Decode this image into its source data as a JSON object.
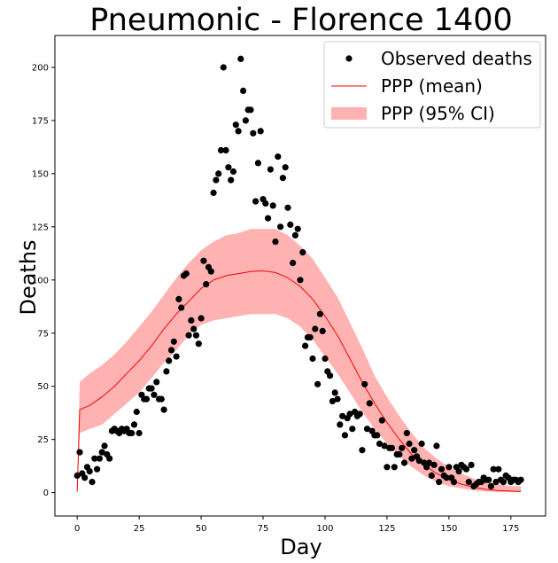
{
  "chart_data": {
    "type": "scatter",
    "title": "Pneumonic - Florence 1400",
    "xlabel": "Day",
    "ylabel": "Deaths",
    "xlim": [
      -9,
      189
    ],
    "ylim": [
      -11,
      215
    ],
    "xticks": [
      0,
      25,
      50,
      75,
      100,
      125,
      150,
      175
    ],
    "yticks": [
      0,
      25,
      50,
      75,
      100,
      125,
      150,
      175,
      200
    ],
    "grid": false,
    "legend": {
      "position": "top-right"
    },
    "series": [
      {
        "name": "Observed deaths",
        "kind": "scatter",
        "color": "#000000",
        "points": [
          [
            0,
            8
          ],
          [
            1,
            19
          ],
          [
            2,
            9
          ],
          [
            3,
            7
          ],
          [
            4,
            12
          ],
          [
            5,
            10
          ],
          [
            6,
            5
          ],
          [
            7,
            16
          ],
          [
            8,
            11
          ],
          [
            9,
            16
          ],
          [
            10,
            19
          ],
          [
            11,
            22
          ],
          [
            12,
            18
          ],
          [
            13,
            16
          ],
          [
            14,
            29
          ],
          [
            15,
            30
          ],
          [
            16,
            29
          ],
          [
            17,
            28
          ],
          [
            18,
            30
          ],
          [
            19,
            29
          ],
          [
            20,
            30
          ],
          [
            21,
            28
          ],
          [
            22,
            28
          ],
          [
            23,
            32
          ],
          [
            24,
            38
          ],
          [
            25,
            28
          ],
          [
            26,
            46
          ],
          [
            27,
            44
          ],
          [
            28,
            44
          ],
          [
            29,
            49
          ],
          [
            30,
            49
          ],
          [
            31,
            46
          ],
          [
            32,
            52
          ],
          [
            33,
            44
          ],
          [
            34,
            44
          ],
          [
            35,
            39
          ],
          [
            36,
            57
          ],
          [
            37,
            62
          ],
          [
            38,
            67
          ],
          [
            39,
            71
          ],
          [
            40,
            64
          ],
          [
            41,
            91
          ],
          [
            42,
            87
          ],
          [
            43,
            102
          ],
          [
            44,
            103
          ],
          [
            45,
            74
          ],
          [
            46,
            81
          ],
          [
            47,
            77
          ],
          [
            48,
            74
          ],
          [
            49,
            70
          ],
          [
            50,
            82
          ],
          [
            51,
            109
          ],
          [
            52,
            98
          ],
          [
            53,
            106
          ],
          [
            54,
            104
          ],
          [
            55,
            141
          ],
          [
            56,
            147
          ],
          [
            57,
            150
          ],
          [
            58,
            161
          ],
          [
            59,
            200
          ],
          [
            60,
            161
          ],
          [
            61,
            153
          ],
          [
            62,
            147
          ],
          [
            63,
            151
          ],
          [
            64,
            173
          ],
          [
            65,
            170
          ],
          [
            66,
            204
          ],
          [
            67,
            189
          ],
          [
            68,
            175
          ],
          [
            69,
            180
          ],
          [
            70,
            180
          ],
          [
            71,
            169
          ],
          [
            72,
            137
          ],
          [
            73,
            155
          ],
          [
            74,
            170
          ],
          [
            75,
            138
          ],
          [
            76,
            136
          ],
          [
            77,
            129
          ],
          [
            78,
            152
          ],
          [
            79,
            135
          ],
          [
            80,
            118
          ],
          [
            81,
            158
          ],
          [
            82,
            125
          ],
          [
            83,
            148
          ],
          [
            84,
            153
          ],
          [
            85,
            134
          ],
          [
            86,
            126
          ],
          [
            87,
            108
          ],
          [
            88,
            121
          ],
          [
            89,
            124
          ],
          [
            90,
            100
          ],
          [
            91,
            113
          ],
          [
            92,
            69
          ],
          [
            93,
            73
          ],
          [
            94,
            73
          ],
          [
            95,
            63
          ],
          [
            96,
            77
          ],
          [
            97,
            51
          ],
          [
            98,
            84
          ],
          [
            99,
            76
          ],
          [
            100,
            63
          ],
          [
            101,
            57
          ],
          [
            102,
            55
          ],
          [
            103,
            43
          ],
          [
            104,
            47
          ],
          [
            105,
            44
          ],
          [
            106,
            32
          ],
          [
            107,
            36
          ],
          [
            108,
            27
          ],
          [
            109,
            35
          ],
          [
            110,
            37
          ],
          [
            111,
            30
          ],
          [
            112,
            38
          ],
          [
            113,
            36
          ],
          [
            114,
            37
          ],
          [
            115,
            20
          ],
          [
            116,
            51
          ],
          [
            117,
            30
          ],
          [
            118,
            42
          ],
          [
            119,
            29
          ],
          [
            120,
            27
          ],
          [
            121,
            27
          ],
          [
            122,
            23
          ],
          [
            123,
            34
          ],
          [
            124,
            22
          ],
          [
            125,
            12
          ],
          [
            126,
            21
          ],
          [
            127,
            21
          ],
          [
            128,
            12
          ],
          [
            129,
            18
          ],
          [
            130,
            18
          ],
          [
            131,
            21
          ],
          [
            132,
            14
          ],
          [
            133,
            28
          ],
          [
            134,
            23
          ],
          [
            135,
            16
          ],
          [
            136,
            20
          ],
          [
            137,
            17
          ],
          [
            138,
            15
          ],
          [
            139,
            23
          ],
          [
            140,
            14
          ],
          [
            141,
            12
          ],
          [
            142,
            14
          ],
          [
            143,
            8
          ],
          [
            144,
            13
          ],
          [
            145,
            22
          ],
          [
            146,
            5
          ],
          [
            147,
            11
          ],
          [
            148,
            8
          ],
          [
            149,
            7
          ],
          [
            150,
            12
          ],
          [
            151,
            7
          ],
          [
            152,
            5
          ],
          [
            153,
            12
          ],
          [
            154,
            10
          ],
          [
            155,
            13
          ],
          [
            156,
            12
          ],
          [
            157,
            11
          ],
          [
            158,
            5
          ],
          [
            159,
            13
          ],
          [
            160,
            3
          ],
          [
            161,
            4
          ],
          [
            162,
            5
          ],
          [
            163,
            5
          ],
          [
            164,
            7
          ],
          [
            165,
            6
          ],
          [
            166,
            6
          ],
          [
            167,
            3
          ],
          [
            168,
            11
          ],
          [
            169,
            5
          ],
          [
            170,
            11
          ],
          [
            171,
            6
          ],
          [
            172,
            5
          ],
          [
            173,
            8
          ],
          [
            174,
            7
          ],
          [
            175,
            5
          ],
          [
            176,
            6
          ],
          [
            177,
            6
          ],
          [
            178,
            5
          ],
          [
            179,
            6
          ]
        ]
      },
      {
        "name": "PPP (mean)",
        "kind": "line",
        "color": "#ff0000",
        "points": [
          [
            0,
            0.5
          ],
          [
            1,
            39
          ],
          [
            5,
            41
          ],
          [
            10,
            45
          ],
          [
            15,
            50
          ],
          [
            20,
            56
          ],
          [
            25,
            62
          ],
          [
            30,
            69
          ],
          [
            35,
            77
          ],
          [
            40,
            84
          ],
          [
            45,
            90
          ],
          [
            50,
            96
          ],
          [
            55,
            100
          ],
          [
            60,
            102
          ],
          [
            65,
            103
          ],
          [
            70,
            104
          ],
          [
            75,
            104.3
          ],
          [
            80,
            103.5
          ],
          [
            85,
            101
          ],
          [
            90,
            97
          ],
          [
            95,
            91
          ],
          [
            100,
            83
          ],
          [
            105,
            74
          ],
          [
            110,
            63
          ],
          [
            115,
            52
          ],
          [
            120,
            42
          ],
          [
            125,
            33
          ],
          [
            130,
            25
          ],
          [
            135,
            18
          ],
          [
            140,
            13
          ],
          [
            145,
            9
          ],
          [
            150,
            6
          ],
          [
            155,
            4
          ],
          [
            160,
            2.5
          ],
          [
            165,
            1.5
          ],
          [
            170,
            1
          ],
          [
            175,
            0.7
          ],
          [
            179,
            0.5
          ]
        ]
      },
      {
        "name": "PPP (95% CI)",
        "kind": "band",
        "color": "#ff0000",
        "fill_opacity": 0.3,
        "x": [
          0,
          1,
          5,
          10,
          15,
          20,
          25,
          30,
          35,
          40,
          45,
          50,
          55,
          60,
          65,
          70,
          75,
          80,
          85,
          90,
          95,
          100,
          105,
          110,
          115,
          120,
          125,
          130,
          135,
          140,
          145,
          150,
          155,
          160,
          165,
          170,
          175,
          179
        ],
        "upper": [
          2,
          52,
          56,
          60,
          65,
          71,
          78,
          85,
          93,
          101,
          108,
          114,
          118,
          121,
          122,
          124,
          124,
          124,
          121,
          116,
          110,
          101,
          92,
          80,
          68,
          55,
          45,
          36,
          28,
          21,
          16,
          12,
          9,
          6.5,
          5,
          4,
          3,
          3
        ],
        "lower": [
          0,
          28,
          30,
          32,
          37,
          42,
          47,
          54,
          61,
          67,
          74,
          79,
          81,
          82,
          83,
          84,
          84,
          84,
          82,
          78,
          72,
          64,
          56,
          47,
          38,
          30,
          23,
          17,
          12,
          8,
          5,
          3,
          2,
          1,
          0.5,
          0.3,
          0.2,
          0.2
        ]
      }
    ]
  }
}
